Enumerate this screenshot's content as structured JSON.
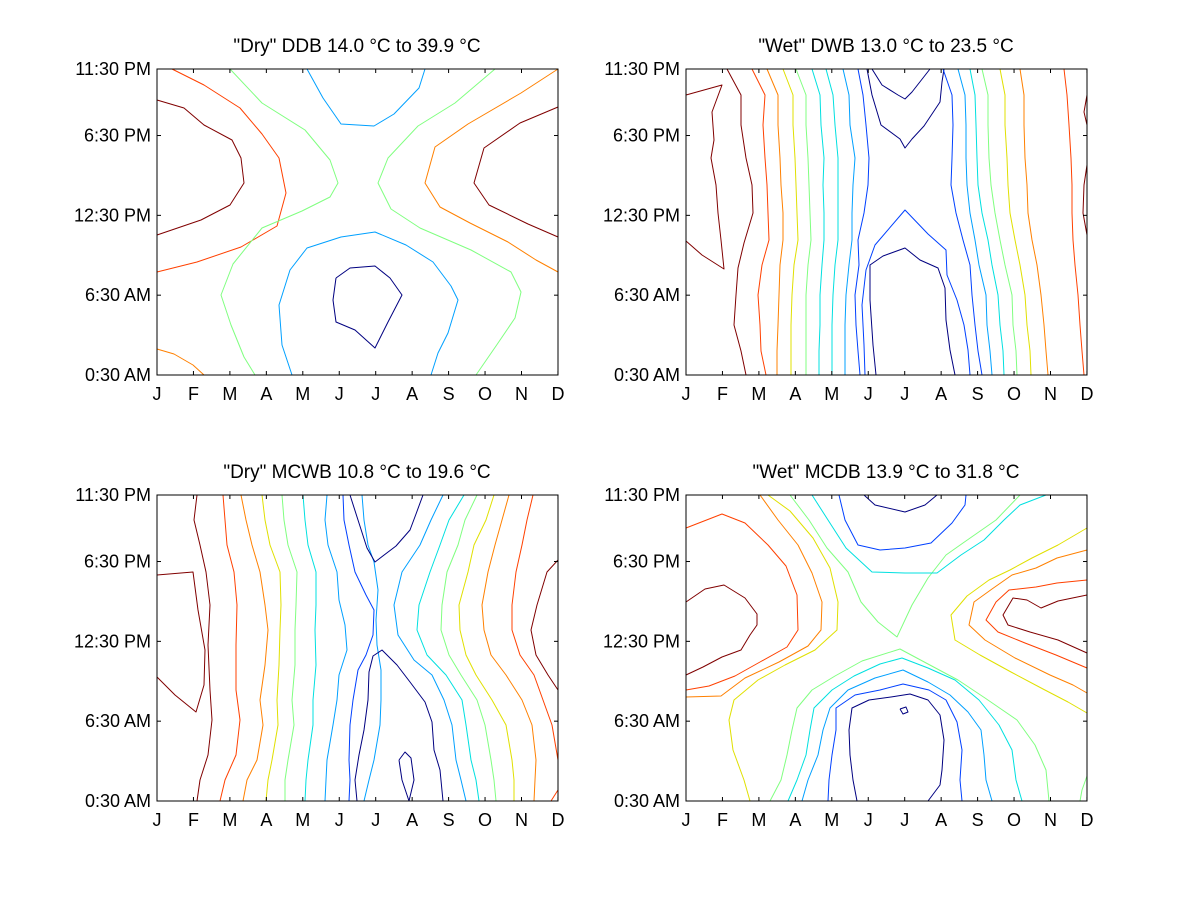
{
  "chart_data": [
    {
      "type": "contour",
      "title": "\"Dry\" DDB  14.0 °C to  39.9 °C",
      "x_ticks": [
        "J",
        "F",
        "M",
        "A",
        "M",
        "J",
        "J",
        "A",
        "S",
        "O",
        "N",
        "D"
      ],
      "y_ticks": [
        "0:30 AM",
        "6:30 AM",
        "12:30 PM",
        "6:30 PM",
        "11:30 PM"
      ],
      "value_range": [
        14.0,
        39.9
      ],
      "unit": "°C"
    },
    {
      "type": "contour",
      "title": "\"Wet\" DWB  13.0 °C to  23.5 °C",
      "x_ticks": [
        "J",
        "F",
        "M",
        "A",
        "M",
        "J",
        "J",
        "A",
        "S",
        "O",
        "N",
        "D"
      ],
      "y_ticks": [
        "0:30 AM",
        "6:30 AM",
        "12:30 PM",
        "6:30 PM",
        "11:30 PM"
      ],
      "value_range": [
        13.0,
        23.5
      ],
      "unit": "°C"
    },
    {
      "type": "contour",
      "title": "\"Dry\" MCWB  10.8 °C to  19.6 °C",
      "x_ticks": [
        "J",
        "F",
        "M",
        "A",
        "M",
        "J",
        "J",
        "A",
        "S",
        "O",
        "N",
        "D"
      ],
      "y_ticks": [
        "0:30 AM",
        "6:30 AM",
        "12:30 PM",
        "6:30 PM",
        "11:30 PM"
      ],
      "value_range": [
        10.8,
        19.6
      ],
      "unit": "°C"
    },
    {
      "type": "contour",
      "title": "\"Wet\" MCDB  13.9 °C to  31.8 °C",
      "x_ticks": [
        "J",
        "F",
        "M",
        "A",
        "M",
        "J",
        "J",
        "A",
        "S",
        "O",
        "N",
        "D"
      ],
      "y_ticks": [
        "0:30 AM",
        "6:30 AM",
        "12:30 PM",
        "6:30 PM",
        "11:30 PM"
      ],
      "value_range": [
        13.9,
        31.8
      ],
      "unit": "°C"
    }
  ],
  "colors": {
    "dark_red": "#800000",
    "orange_red": "#ff4000",
    "orange": "#ff8000",
    "yellow": "#e0e000",
    "light_green": "#80ff80",
    "cyan": "#00e0e0",
    "sky_blue": "#00a0ff",
    "blue": "#0040ff",
    "dark_blue": "#000080"
  }
}
